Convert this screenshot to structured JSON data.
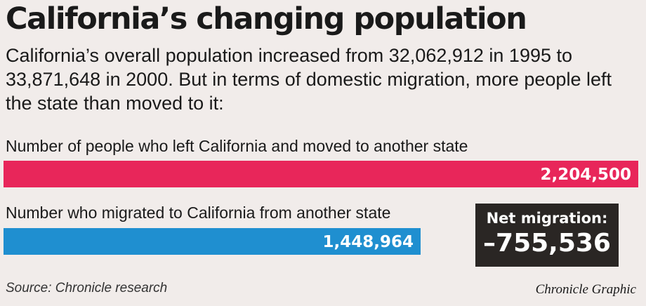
{
  "title": "California’s changing population",
  "intro": "California’s overall population increased from 32,062,912 in 1995 to 33,871,648 in 2000. But in terms of domestic migration, more people left the state than moved to it:",
  "chart_data": {
    "type": "bar",
    "orientation": "horizontal",
    "categories": [
      "Number of people who left California and moved to another state",
      "Number who migrated to California from another state"
    ],
    "values": [
      2204500,
      1448964
    ],
    "value_labels": [
      "2,204,500",
      "1,448,964"
    ],
    "colors": [
      "#e8265a",
      "#1f8fd0"
    ],
    "annotation": {
      "label": "Net migration:",
      "value": "–755,536",
      "number": -755536
    },
    "xlim": [
      0,
      2204500
    ]
  },
  "source": "Source: Chronicle research",
  "credit": "Chronicle Graphic"
}
